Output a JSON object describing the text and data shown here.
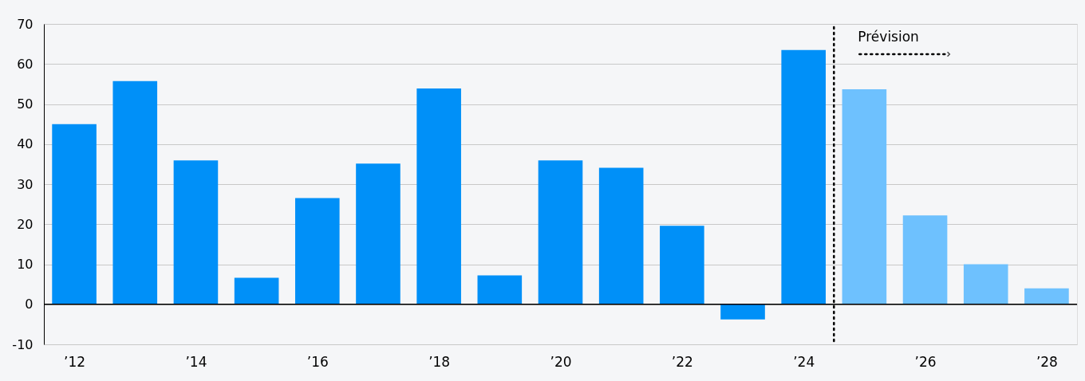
{
  "chart_data": {
    "type": "bar",
    "x": [
      2012,
      2013,
      2014,
      2015,
      2016,
      2017,
      2018,
      2019,
      2020,
      2021,
      2022,
      2023,
      2024,
      2025,
      2026,
      2027,
      2028
    ],
    "values": [
      45,
      55.7,
      35.9,
      6.6,
      26.5,
      35.1,
      53.9,
      7.2,
      35.9,
      34.1,
      19.6,
      -3.8,
      63.5,
      53.7,
      22.2,
      10,
      4
    ],
    "colors": [
      "#0090f8",
      "#0090f8",
      "#0090f8",
      "#0090f8",
      "#0090f8",
      "#0090f8",
      "#0090f8",
      "#0090f8",
      "#0090f8",
      "#0090f8",
      "#0090f8",
      "#0090f8",
      "#0090f8",
      "#6ec1fe",
      "#6ec1fe",
      "#6ec1fe",
      "#6ec1fe"
    ],
    "xlim": [
      2011.5,
      2028.5
    ],
    "xticks": [
      {
        "value": 2012,
        "label": "’12"
      },
      {
        "value": 2014,
        "label": "’14"
      },
      {
        "value": 2016,
        "label": "’16"
      },
      {
        "value": 2018,
        "label": "’18"
      },
      {
        "value": 2020,
        "label": "’20"
      },
      {
        "value": 2022,
        "label": "’22"
      },
      {
        "value": 2024,
        "label": "’24"
      },
      {
        "value": 2026,
        "label": "’26"
      },
      {
        "value": 2028,
        "label": "’28"
      }
    ],
    "ylim": [
      -10,
      70
    ],
    "yticks": [
      -10,
      0,
      10,
      20,
      30,
      40,
      50,
      60,
      70
    ],
    "grid": "y",
    "ref_lines": [
      {
        "axis": "y",
        "value": 0,
        "color": "#000000",
        "line_style": "solid"
      },
      {
        "axis": "x",
        "value": 2024.5,
        "label": "Prévision",
        "color": "#000000",
        "line_style": "dotted"
      }
    ]
  }
}
